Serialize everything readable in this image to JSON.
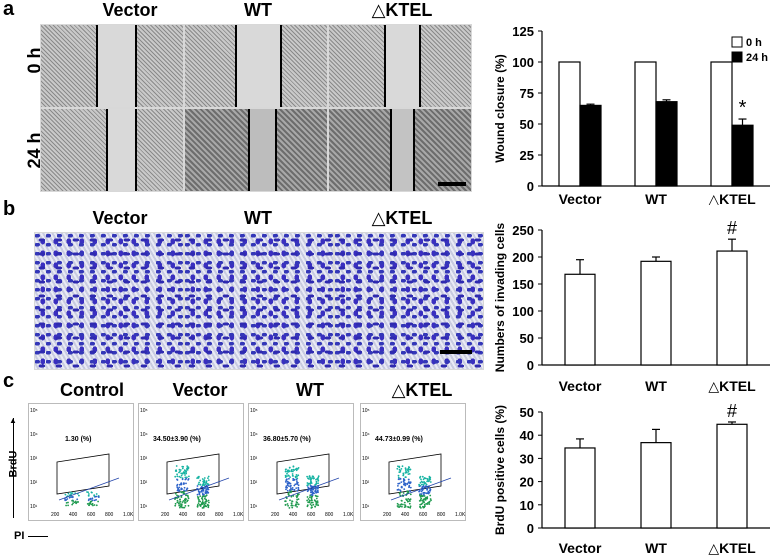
{
  "panels": {
    "a": {
      "letter": "a",
      "columns": [
        "Vector",
        "WT",
        "△KTEL"
      ],
      "rows": [
        "0 h",
        "24 h"
      ]
    },
    "b": {
      "letter": "b",
      "columns": [
        "Vector",
        "WT",
        "△KTEL"
      ]
    },
    "c": {
      "letter": "c",
      "columns": [
        "Control",
        "Vector",
        "WT",
        "△KTEL"
      ],
      "flow_values": [
        "1.30 (%)",
        "34.50±3.90 (%)",
        "36.80±5.70 (%)",
        "44.73±0.99 (%)"
      ],
      "y_axis_label": "BrdU",
      "x_axis_label": "PI",
      "y_ticks": [
        "10⁵",
        "10⁴",
        "10³",
        "10²",
        "10¹"
      ],
      "x_ticks": [
        "200",
        "400",
        "600",
        "800",
        "1.0K"
      ]
    }
  },
  "chart_data": [
    {
      "id": "wound",
      "type": "bar",
      "title": "",
      "ylabel": "Wound closure (%)",
      "xlabel": "",
      "categories": [
        "Vector",
        "WT",
        "△KTEL"
      ],
      "series": [
        {
          "name": "0 h",
          "values": [
            100,
            100,
            100
          ],
          "errors": [
            0,
            0,
            0
          ],
          "color": "#ffffff"
        },
        {
          "name": "24 h",
          "values": [
            65,
            68,
            49
          ],
          "errors": [
            1,
            1.5,
            5
          ],
          "color": "#000000"
        }
      ],
      "ylim": [
        0,
        125
      ],
      "yticks": [
        0,
        25,
        50,
        75,
        100,
        125
      ],
      "annotations": [
        {
          "category": "△KTEL",
          "series": "24 h",
          "text": "*"
        }
      ],
      "legend": "top-right"
    },
    {
      "id": "invasion",
      "type": "bar",
      "title": "",
      "ylabel": "Numbers of invading cells",
      "xlabel": "",
      "categories": [
        "Vector",
        "WT",
        "△KTEL"
      ],
      "series": [
        {
          "name": "cells",
          "values": [
            168,
            192,
            211
          ],
          "errors": [
            27,
            8,
            22
          ],
          "color": "#ffffff"
        }
      ],
      "ylim": [
        0,
        250
      ],
      "yticks": [
        0,
        50,
        100,
        150,
        200,
        250
      ],
      "annotations": [
        {
          "category": "△KTEL",
          "series": "cells",
          "text": "#"
        }
      ]
    },
    {
      "id": "brdu",
      "type": "bar",
      "title": "",
      "ylabel": "BrdU positive cells (%)",
      "xlabel": "",
      "categories": [
        "Vector",
        "WT",
        "△KTEL"
      ],
      "series": [
        {
          "name": "BrdU",
          "values": [
            34.5,
            36.8,
            44.7
          ],
          "errors": [
            3.9,
            5.7,
            1.0
          ],
          "color": "#ffffff"
        }
      ],
      "ylim": [
        0,
        50
      ],
      "yticks": [
        0,
        10,
        20,
        30,
        40,
        50
      ],
      "annotations": [
        {
          "category": "△KTEL",
          "series": "BrdU",
          "text": "#"
        }
      ]
    }
  ]
}
